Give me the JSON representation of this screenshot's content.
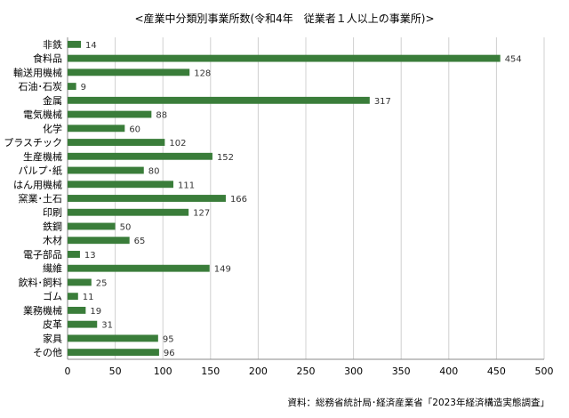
{
  "chart_data": {
    "type": "bar",
    "orientation": "horizontal",
    "title": "<産業中分類別事業所数(令和4年　従業者１人以上の事業所)>",
    "categories": [
      "非鉄",
      "食料品",
      "輸送用機械",
      "石油･石炭",
      "金属",
      "電気機械",
      "化学",
      "プラスチック",
      "生産機械",
      "パルプ･紙",
      "はん用機械",
      "窯業･土石",
      "印刷",
      "鉄鋼",
      "木材",
      "電子部品",
      "繊維",
      "飲料･飼料",
      "ゴム",
      "業務機械",
      "皮革",
      "家具",
      "その他"
    ],
    "values": [
      14,
      454,
      128,
      9,
      317,
      88,
      60,
      102,
      152,
      80,
      111,
      166,
      127,
      50,
      65,
      13,
      149,
      25,
      11,
      19,
      31,
      95,
      96
    ],
    "xlim": [
      0,
      500
    ],
    "xticks": [
      0,
      50,
      100,
      150,
      200,
      250,
      300,
      350,
      400,
      450,
      500
    ],
    "grid": "vertical",
    "bar_color": "#3a7d3a",
    "xlabel": "",
    "ylabel": ""
  },
  "source_note": "資料：総務省統計局･経済産業省「2023年経済構造実態調査」"
}
